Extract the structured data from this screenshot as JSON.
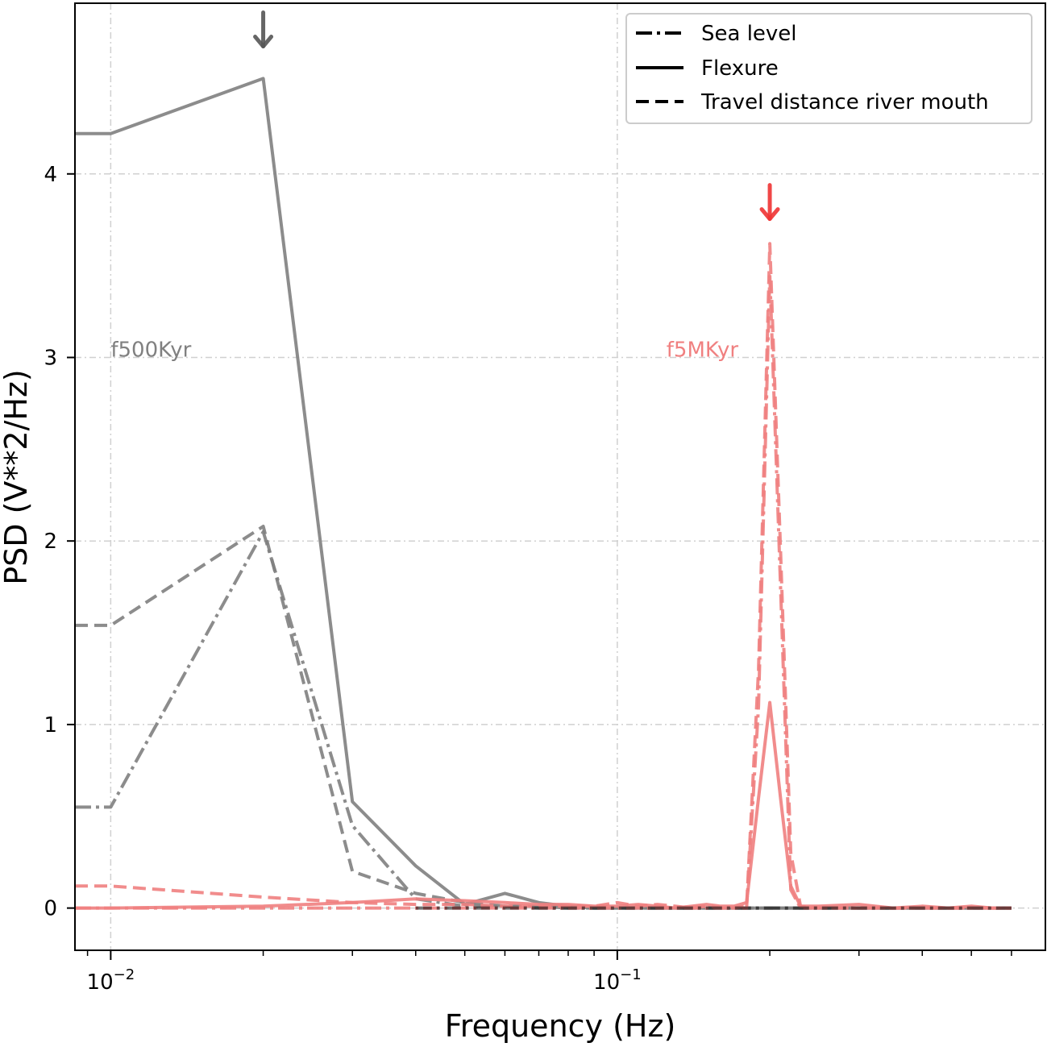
{
  "chart_data": {
    "type": "line",
    "title": "",
    "xlabel": "Frequency (Hz)",
    "ylabel": "PSD (V**2/Hz)",
    "xscale": "log",
    "xlim": [
      0.0085,
      0.7
    ],
    "ylim": [
      -0.23,
      4.93
    ],
    "xticks": [
      {
        "value": 0.01,
        "base": "10",
        "exp": "−2"
      },
      {
        "value": 0.1,
        "base": "10",
        "exp": "−1"
      }
    ],
    "yticks": [
      0,
      1,
      2,
      3,
      4
    ],
    "ytick_labels": [
      "0",
      "1",
      "2",
      "3",
      "4"
    ],
    "grid": true,
    "legend": {
      "position": "top-right",
      "entries": [
        {
          "label": "Sea level",
          "style": "dashdot"
        },
        {
          "label": "Flexure",
          "style": "solid"
        },
        {
          "label": "Travel distance river mouth",
          "style": "dashed"
        }
      ]
    },
    "annotations": [
      {
        "text": "f500Kyr",
        "x": 0.01,
        "y": 3.0,
        "color": "#808080"
      },
      {
        "text": "f5MKyr",
        "x": 0.125,
        "y": 3.0,
        "color": "#f08080"
      }
    ],
    "arrows": [
      {
        "x": 0.02,
        "y": 4.73,
        "color": "#555555"
      },
      {
        "x": 0.2,
        "y": 3.79,
        "color": "#ee3333"
      }
    ],
    "series": [
      {
        "group": "f500Kyr",
        "style": "solid",
        "color": "#808080",
        "x": [
          0.0085,
          0.01,
          0.02,
          0.03,
          0.04,
          0.05,
          0.06,
          0.07,
          0.08,
          0.09,
          0.1,
          0.2,
          0.3,
          0.4,
          0.5,
          0.6
        ],
        "y": [
          4.22,
          4.22,
          4.52,
          0.58,
          0.23,
          0.02,
          0.08,
          0.03,
          0.01,
          0.0,
          0.0,
          0.0,
          0.0,
          0.0,
          0.0,
          0.0
        ]
      },
      {
        "group": "f500Kyr",
        "style": "dashed",
        "color": "#808080",
        "x": [
          0.0085,
          0.01,
          0.02,
          0.03,
          0.04,
          0.05,
          0.06,
          0.07,
          0.08,
          0.09,
          0.1,
          0.2,
          0.3,
          0.4,
          0.5,
          0.6
        ],
        "y": [
          1.54,
          1.54,
          2.08,
          0.2,
          0.08,
          0.03,
          0.01,
          0.01,
          0.0,
          0.0,
          0.0,
          0.0,
          0.0,
          0.0,
          0.0,
          0.0
        ]
      },
      {
        "group": "f500Kyr",
        "style": "dashdot",
        "color": "#808080",
        "x": [
          0.0085,
          0.01,
          0.02,
          0.03,
          0.04,
          0.05,
          0.06,
          0.07,
          0.08,
          0.09,
          0.1,
          0.2,
          0.3,
          0.4,
          0.5,
          0.6
        ],
        "y": [
          0.55,
          0.55,
          2.05,
          0.45,
          0.05,
          0.01,
          0.01,
          0.0,
          0.0,
          0.0,
          0.0,
          0.0,
          0.0,
          0.0,
          0.0,
          0.0
        ]
      },
      {
        "group": "f5MKyr",
        "style": "solid",
        "color": "#f08080",
        "x": [
          0.0085,
          0.01,
          0.02,
          0.03,
          0.04,
          0.05,
          0.06,
          0.07,
          0.08,
          0.09,
          0.1,
          0.11,
          0.12,
          0.13,
          0.14,
          0.15,
          0.16,
          0.17,
          0.18,
          0.19,
          0.2,
          0.21,
          0.22,
          0.23,
          0.25,
          0.3,
          0.35,
          0.4,
          0.45,
          0.5,
          0.55,
          0.6
        ],
        "y": [
          0.0,
          0.0,
          0.01,
          0.03,
          0.05,
          0.04,
          0.03,
          0.02,
          0.02,
          0.01,
          0.01,
          0.02,
          0.01,
          0.0,
          0.01,
          0.02,
          0.01,
          0.01,
          0.03,
          0.6,
          1.12,
          0.6,
          0.12,
          0.01,
          0.01,
          0.02,
          0.0,
          0.01,
          0.0,
          0.01,
          0.0,
          0.0
        ]
      },
      {
        "group": "f5MKyr",
        "style": "dashed",
        "color": "#f08080",
        "x": [
          0.0085,
          0.01,
          0.02,
          0.03,
          0.04,
          0.05,
          0.06,
          0.07,
          0.08,
          0.09,
          0.1,
          0.11,
          0.12,
          0.13,
          0.14,
          0.15,
          0.16,
          0.17,
          0.18,
          0.19,
          0.2,
          0.21,
          0.22,
          0.23,
          0.25,
          0.3,
          0.35,
          0.4,
          0.45,
          0.5,
          0.55,
          0.6
        ],
        "y": [
          0.12,
          0.12,
          0.06,
          0.03,
          0.02,
          0.02,
          0.01,
          0.01,
          0.01,
          0.01,
          0.03,
          0.01,
          0.02,
          0.01,
          0.0,
          0.01,
          0.0,
          0.0,
          0.01,
          1.3,
          3.62,
          1.95,
          0.3,
          0.01,
          0.0,
          0.0,
          0.0,
          0.0,
          0.0,
          0.0,
          0.0,
          0.0
        ]
      },
      {
        "group": "f5MKyr",
        "style": "dashdot",
        "color": "#f08080",
        "x": [
          0.0085,
          0.01,
          0.02,
          0.03,
          0.04,
          0.05,
          0.06,
          0.07,
          0.08,
          0.09,
          0.1,
          0.11,
          0.12,
          0.13,
          0.14,
          0.15,
          0.16,
          0.17,
          0.18,
          0.19,
          0.2,
          0.21,
          0.22,
          0.23,
          0.25,
          0.3,
          0.35,
          0.4,
          0.45,
          0.5,
          0.55,
          0.6
        ],
        "y": [
          0.0,
          0.0,
          0.0,
          0.0,
          0.0,
          0.0,
          0.0,
          0.0,
          0.0,
          0.0,
          0.0,
          0.0,
          0.0,
          0.0,
          0.0,
          0.0,
          0.0,
          0.0,
          0.0,
          1.1,
          3.45,
          1.75,
          0.1,
          0.0,
          0.0,
          0.0,
          0.0,
          0.0,
          0.0,
          0.0,
          0.0,
          0.0
        ]
      },
      {
        "group": "baseline",
        "style": "dashdot",
        "color": "#000000",
        "x": [
          0.04,
          0.6
        ],
        "y": [
          0.0,
          0.0
        ]
      }
    ]
  }
}
